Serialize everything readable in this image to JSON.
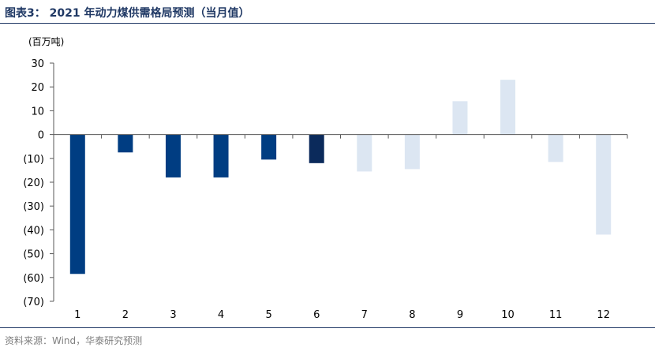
{
  "title": "图表3：   2021 年动力煤供需格局预测（当月值）",
  "source": "资料来源：Wind，华泰研究预测",
  "colors": {
    "dark_navy": "#0b2a5b",
    "navy": "#003d82",
    "light": "#dce6f2",
    "axis": "#595959",
    "title": "#1f3864",
    "source": "#7f7f7f"
  },
  "chart_data": {
    "type": "bar",
    "unit_label": "(百万吨)",
    "categories": [
      "1",
      "2",
      "3",
      "4",
      "5",
      "6",
      "7",
      "8",
      "9",
      "10",
      "11",
      "12"
    ],
    "values": [
      -58.5,
      -7.5,
      -18,
      -18,
      -10.5,
      -12,
      -15.5,
      -14.5,
      14,
      23,
      -11.5,
      -42
    ],
    "bar_styles": [
      "navy",
      "navy",
      "navy",
      "navy",
      "navy",
      "dark_navy",
      "light",
      "light",
      "light",
      "light",
      "light",
      "light"
    ],
    "ylim": [
      -70,
      30
    ],
    "yticks": [
      30,
      20,
      10,
      0,
      -10,
      -20,
      -30,
      -40,
      -50,
      -60,
      -70
    ],
    "ytick_labels": [
      "30",
      "20",
      "10",
      "0",
      "(10)",
      "(20)",
      "(30)",
      "(40)",
      "(50)",
      "(60)",
      "(70)"
    ],
    "grid": false,
    "legend": "none"
  }
}
